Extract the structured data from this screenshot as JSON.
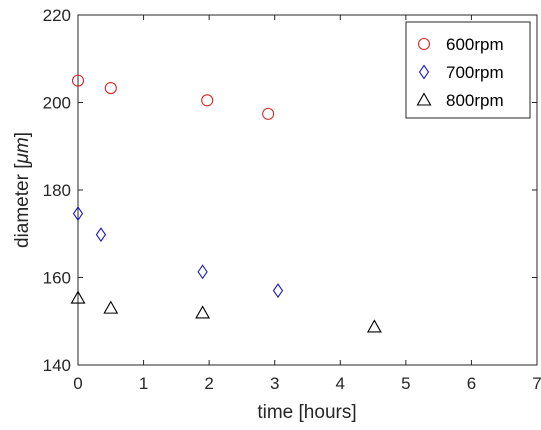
{
  "chart_data": {
    "type": "scatter",
    "xlabel": "time [hours]",
    "ylabel_text": "diameter [",
    "ylabel_unit": "μm",
    "ylabel_close": "]",
    "xlim": [
      0,
      7
    ],
    "ylim": [
      140,
      220
    ],
    "xticks": [
      "0",
      "1",
      "2",
      "3",
      "4",
      "5",
      "6",
      "7"
    ],
    "yticks": [
      "140",
      "160",
      "180",
      "200",
      "220"
    ],
    "grid": false,
    "legend_position": "top-right",
    "series": [
      {
        "name": "600rpm",
        "marker": "circle",
        "color": "#d62728",
        "points": [
          [
            0.0,
            205.0
          ],
          [
            0.5,
            203.3
          ],
          [
            1.97,
            200.5
          ],
          [
            2.9,
            197.4
          ]
        ]
      },
      {
        "name": "700rpm",
        "marker": "diamond",
        "color": "#1f1fbf",
        "points": [
          [
            0.0,
            174.6
          ],
          [
            0.35,
            169.8
          ],
          [
            1.9,
            161.3
          ],
          [
            3.05,
            157.0
          ]
        ]
      },
      {
        "name": "800rpm",
        "marker": "triangle",
        "color": "#000000",
        "points": [
          [
            0.0,
            155.3
          ],
          [
            0.5,
            153.0
          ],
          [
            1.9,
            151.9
          ],
          [
            4.52,
            148.7
          ]
        ]
      }
    ]
  }
}
